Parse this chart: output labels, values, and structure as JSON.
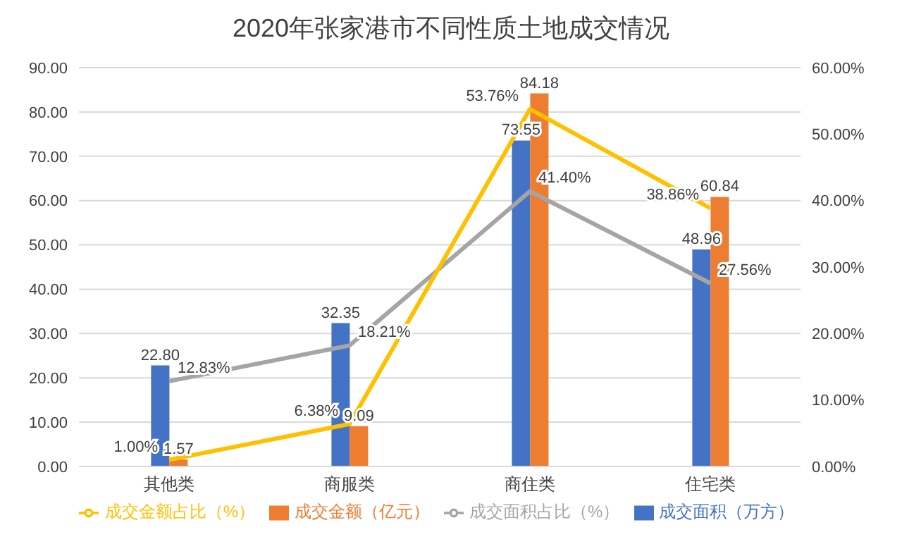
{
  "chart_data": {
    "type": "bar",
    "title": "2020年张家港市不同性质土地成交情况",
    "categories": [
      "其他类",
      "商服类",
      "商住类",
      "住宅类"
    ],
    "series": [
      {
        "name": "成交面积（万方）",
        "color": "#4472c4",
        "values": [
          22.8,
          32.35,
          73.55,
          48.96
        ],
        "value_labels": [
          "22.80",
          "32.35",
          "73.55",
          "48.96"
        ]
      },
      {
        "name": "成交金额（亿元）",
        "color": "#ed7d31",
        "values": [
          1.57,
          9.09,
          84.18,
          60.84
        ],
        "value_labels": [
          "1.57",
          "9.09",
          "84.18",
          "60.84"
        ]
      },
      {
        "name": "成交面积占比（%）",
        "type": "line",
        "axis": "y2",
        "color": "#a5a5a5",
        "values": [
          12.83,
          18.21,
          41.4,
          27.56
        ],
        "value_labels": [
          "12.83%",
          "18.21%",
          "41.40%",
          "27.56%"
        ]
      },
      {
        "name": "成交金额占比（%）",
        "type": "line",
        "axis": "y2",
        "color": "#ffc000",
        "values": [
          1.0,
          6.38,
          53.76,
          38.86
        ],
        "value_labels": [
          "1.00%",
          "6.38%",
          "53.76%",
          "38.86%"
        ]
      }
    ],
    "ylim": [
      0,
      90
    ],
    "yticks": [
      {
        "value": 0,
        "label": "0.00"
      },
      {
        "value": 10,
        "label": "10.00"
      },
      {
        "value": 20,
        "label": "20.00"
      },
      {
        "value": 30,
        "label": "30.00"
      },
      {
        "value": 40,
        "label": "40.00"
      },
      {
        "value": 50,
        "label": "50.00"
      },
      {
        "value": 60,
        "label": "60.00"
      },
      {
        "value": 70,
        "label": "70.00"
      },
      {
        "value": 80,
        "label": "80.00"
      },
      {
        "value": 90,
        "label": "90.00"
      }
    ],
    "y2lim": [
      0,
      60
    ],
    "y2ticks": [
      {
        "value": 0,
        "label": "0.00%"
      },
      {
        "value": 10,
        "label": "10.00%"
      },
      {
        "value": 20,
        "label": "20.00%"
      },
      {
        "value": 30,
        "label": "30.00%"
      },
      {
        "value": 40,
        "label": "40.00%"
      },
      {
        "value": 50,
        "label": "50.00%"
      },
      {
        "value": 60,
        "label": "60.00%"
      }
    ],
    "grid": "y",
    "legend": "bottom",
    "marker": "none",
    "line_style": "solid"
  }
}
